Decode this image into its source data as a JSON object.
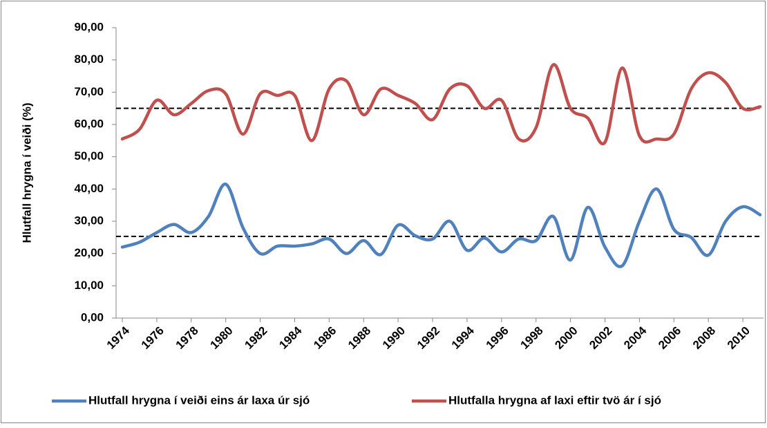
{
  "chart_data": {
    "type": "line",
    "y_label": "Hlutfall hrygna í veiði (%)",
    "x": [
      1974,
      1975,
      1976,
      1977,
      1978,
      1979,
      1980,
      1981,
      1982,
      1983,
      1984,
      1985,
      1986,
      1987,
      1988,
      1989,
      1990,
      1991,
      1992,
      1993,
      1994,
      1995,
      1996,
      1997,
      1998,
      1999,
      2000,
      2001,
      2002,
      2003,
      2004,
      2005,
      2006,
      2007,
      2008,
      2009,
      2010,
      2011
    ],
    "xlim": [
      1974,
      2011
    ],
    "xticks": [
      1974,
      1976,
      1978,
      1980,
      1982,
      1984,
      1986,
      1988,
      1990,
      1992,
      1994,
      1996,
      1998,
      2000,
      2002,
      2004,
      2006,
      2008,
      2010
    ],
    "ylim": [
      0,
      90
    ],
    "yticks": [
      {
        "value": 0,
        "label": "0,00"
      },
      {
        "value": 10,
        "label": "10,00"
      },
      {
        "value": 20,
        "label": "20,00"
      },
      {
        "value": 30,
        "label": "30,00"
      },
      {
        "value": 40,
        "label": "40,00"
      },
      {
        "value": 50,
        "label": "50,00"
      },
      {
        "value": 60,
        "label": "60,00"
      },
      {
        "value": 70,
        "label": "70,00"
      },
      {
        "value": 80,
        "label": "80,00"
      },
      {
        "value": 90,
        "label": "90,00"
      }
    ],
    "grid": false,
    "legend": "bottom",
    "series": [
      {
        "name": "Hlutfall hrygna í veiði eins ár laxa úr sjó",
        "color": "#4f81bd",
        "values": [
          22,
          23.5,
          26.5,
          29,
          26.5,
          31.5,
          41.5,
          28,
          20,
          22.3,
          22.3,
          23,
          24.5,
          20,
          24,
          19.7,
          28.8,
          25.5,
          24.5,
          30,
          21,
          24.8,
          20.5,
          24.5,
          24,
          31.5,
          18,
          34.3,
          22,
          16.2,
          30,
          40,
          27.5,
          25,
          19.5,
          30,
          34.5,
          32
        ]
      },
      {
        "name": "Hlutfalla hrygna af laxi eftir tvö ár í sjó",
        "color": "#c0504d",
        "values": [
          55.5,
          58.5,
          67.5,
          63,
          66.5,
          70.5,
          69.5,
          57,
          69.5,
          69,
          69,
          55,
          71,
          73.5,
          63,
          71,
          69,
          66.5,
          61.5,
          71,
          72,
          65,
          67.5,
          55.5,
          59,
          78.5,
          65,
          62,
          54.5,
          77.5,
          56.5,
          55.5,
          57,
          71,
          76,
          73,
          65,
          65.5
        ]
      }
    ],
    "reference_lines": [
      65,
      25.3
    ]
  }
}
